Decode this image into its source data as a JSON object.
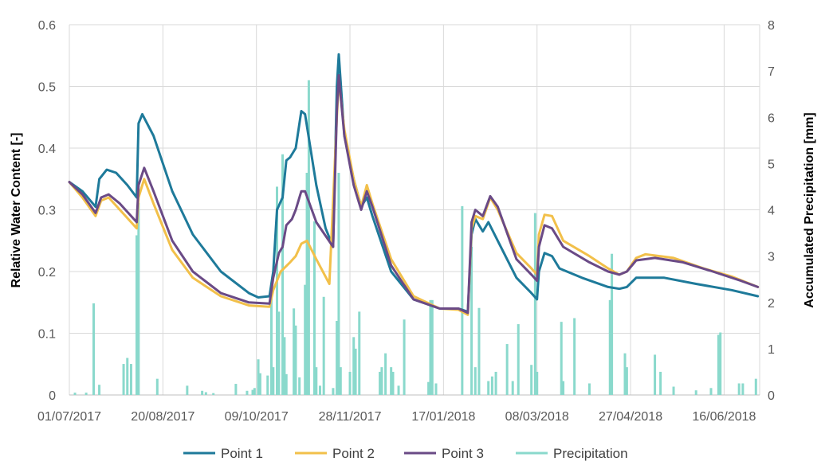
{
  "chart_data": {
    "type": "line",
    "xlabel": "",
    "ylabel": "Relative Water Content [-]",
    "y2label": "Accumulated Precipitation [mm]",
    "x_range": [
      "2017-07-01",
      "2018-07-05"
    ],
    "x_ticks": [
      "01/07/2017",
      "20/08/2017",
      "09/10/2017",
      "28/11/2017",
      "17/01/2018",
      "08/03/2018",
      "27/04/2018",
      "16/06/2018"
    ],
    "ylim": [
      0,
      0.6
    ],
    "y_ticks": [
      "0",
      "0.1",
      "0.2",
      "0.3",
      "0.4",
      "0.5",
      "0.6"
    ],
    "y2lim": [
      0,
      8
    ],
    "y2_ticks": [
      "0",
      "1",
      "2",
      "3",
      "4",
      "5",
      "6",
      "7",
      "8"
    ],
    "grid": "vertical and horizontal",
    "legend_position": "bottom",
    "series": [
      {
        "name": "Point 1",
        "color": "#1e7a9a",
        "axis": "left",
        "points": [
          [
            "2017-07-01",
            0.345
          ],
          [
            "2017-07-08",
            0.33
          ],
          [
            "2017-07-15",
            0.305
          ],
          [
            "2017-07-17",
            0.35
          ],
          [
            "2017-07-21",
            0.365
          ],
          [
            "2017-07-26",
            0.36
          ],
          [
            "2017-08-01",
            0.34
          ],
          [
            "2017-08-06",
            0.32
          ],
          [
            "2017-08-07",
            0.44
          ],
          [
            "2017-08-09",
            0.455
          ],
          [
            "2017-08-15",
            0.42
          ],
          [
            "2017-08-25",
            0.33
          ],
          [
            "2017-09-05",
            0.26
          ],
          [
            "2017-09-20",
            0.2
          ],
          [
            "2017-10-05",
            0.165
          ],
          [
            "2017-10-10",
            0.158
          ],
          [
            "2017-10-16",
            0.16
          ],
          [
            "2017-10-18",
            0.2
          ],
          [
            "2017-10-20",
            0.3
          ],
          [
            "2017-10-23",
            0.32
          ],
          [
            "2017-10-25",
            0.38
          ],
          [
            "2017-10-27",
            0.385
          ],
          [
            "2017-10-30",
            0.4
          ],
          [
            "2017-11-02",
            0.46
          ],
          [
            "2017-11-04",
            0.455
          ],
          [
            "2017-11-10",
            0.34
          ],
          [
            "2017-11-15",
            0.27
          ],
          [
            "2017-11-19",
            0.24
          ],
          [
            "2017-11-21",
            0.5
          ],
          [
            "2017-11-22",
            0.552
          ],
          [
            "2017-11-25",
            0.42
          ],
          [
            "2017-11-30",
            0.35
          ],
          [
            "2017-12-04",
            0.305
          ],
          [
            "2017-12-07",
            0.32
          ],
          [
            "2017-12-10",
            0.29
          ],
          [
            "2017-12-20",
            0.2
          ],
          [
            "2018-01-01",
            0.155
          ],
          [
            "2018-01-15",
            0.14
          ],
          [
            "2018-01-25",
            0.14
          ],
          [
            "2018-01-30",
            0.135
          ],
          [
            "2018-02-01",
            0.26
          ],
          [
            "2018-02-03",
            0.285
          ],
          [
            "2018-02-07",
            0.265
          ],
          [
            "2018-02-10",
            0.28
          ],
          [
            "2018-02-15",
            0.25
          ],
          [
            "2018-02-25",
            0.19
          ],
          [
            "2018-03-05",
            0.165
          ],
          [
            "2018-03-08",
            0.155
          ],
          [
            "2018-03-09",
            0.2
          ],
          [
            "2018-03-12",
            0.23
          ],
          [
            "2018-03-16",
            0.225
          ],
          [
            "2018-03-20",
            0.205
          ],
          [
            "2018-04-01",
            0.19
          ],
          [
            "2018-04-15",
            0.175
          ],
          [
            "2018-04-21",
            0.172
          ],
          [
            "2018-04-25",
            0.175
          ],
          [
            "2018-04-30",
            0.19
          ],
          [
            "2018-05-15",
            0.19
          ],
          [
            "2018-06-01",
            0.18
          ],
          [
            "2018-06-20",
            0.17
          ],
          [
            "2018-07-04",
            0.16
          ]
        ]
      },
      {
        "name": "Point 2",
        "color": "#f2c04a",
        "axis": "left",
        "points": [
          [
            "2017-07-01",
            0.345
          ],
          [
            "2017-07-08",
            0.32
          ],
          [
            "2017-07-15",
            0.29
          ],
          [
            "2017-07-18",
            0.315
          ],
          [
            "2017-07-22",
            0.32
          ],
          [
            "2017-07-28",
            0.3
          ],
          [
            "2017-08-06",
            0.27
          ],
          [
            "2017-08-07",
            0.32
          ],
          [
            "2017-08-10",
            0.35
          ],
          [
            "2017-08-15",
            0.31
          ],
          [
            "2017-08-25",
            0.235
          ],
          [
            "2017-09-05",
            0.19
          ],
          [
            "2017-09-20",
            0.16
          ],
          [
            "2017-10-05",
            0.145
          ],
          [
            "2017-10-16",
            0.143
          ],
          [
            "2017-10-18",
            0.17
          ],
          [
            "2017-10-22",
            0.2
          ],
          [
            "2017-10-27",
            0.215
          ],
          [
            "2017-10-30",
            0.225
          ],
          [
            "2017-11-02",
            0.245
          ],
          [
            "2017-11-05",
            0.25
          ],
          [
            "2017-11-10",
            0.22
          ],
          [
            "2017-11-17",
            0.18
          ],
          [
            "2017-11-21",
            0.45
          ],
          [
            "2017-11-22",
            0.51
          ],
          [
            "2017-11-25",
            0.43
          ],
          [
            "2017-11-30",
            0.35
          ],
          [
            "2017-12-04",
            0.305
          ],
          [
            "2017-12-07",
            0.34
          ],
          [
            "2017-12-10",
            0.31
          ],
          [
            "2017-12-20",
            0.22
          ],
          [
            "2018-01-01",
            0.16
          ],
          [
            "2018-01-15",
            0.14
          ],
          [
            "2018-01-25",
            0.138
          ],
          [
            "2018-01-30",
            0.13
          ],
          [
            "2018-02-01",
            0.27
          ],
          [
            "2018-02-03",
            0.29
          ],
          [
            "2018-02-07",
            0.285
          ],
          [
            "2018-02-11",
            0.32
          ],
          [
            "2018-02-15",
            0.3
          ],
          [
            "2018-02-25",
            0.23
          ],
          [
            "2018-03-05",
            0.205
          ],
          [
            "2018-03-08",
            0.195
          ],
          [
            "2018-03-09",
            0.26
          ],
          [
            "2018-03-12",
            0.292
          ],
          [
            "2018-03-16",
            0.29
          ],
          [
            "2018-03-22",
            0.25
          ],
          [
            "2018-04-05",
            0.225
          ],
          [
            "2018-04-15",
            0.205
          ],
          [
            "2018-04-21",
            0.195
          ],
          [
            "2018-04-25",
            0.2
          ],
          [
            "2018-04-30",
            0.222
          ],
          [
            "2018-05-05",
            0.228
          ],
          [
            "2018-05-20",
            0.222
          ],
          [
            "2018-06-05",
            0.205
          ],
          [
            "2018-06-20",
            0.192
          ],
          [
            "2018-07-04",
            0.175
          ]
        ]
      },
      {
        "name": "Point 3",
        "color": "#6a4a86",
        "axis": "left",
        "points": [
          [
            "2017-07-01",
            0.345
          ],
          [
            "2017-07-08",
            0.325
          ],
          [
            "2017-07-15",
            0.295
          ],
          [
            "2017-07-18",
            0.32
          ],
          [
            "2017-07-22",
            0.325
          ],
          [
            "2017-07-28",
            0.31
          ],
          [
            "2017-08-06",
            0.28
          ],
          [
            "2017-08-07",
            0.34
          ],
          [
            "2017-08-10",
            0.368
          ],
          [
            "2017-08-15",
            0.33
          ],
          [
            "2017-08-25",
            0.25
          ],
          [
            "2017-09-05",
            0.2
          ],
          [
            "2017-09-20",
            0.165
          ],
          [
            "2017-10-05",
            0.15
          ],
          [
            "2017-10-16",
            0.148
          ],
          [
            "2017-10-18",
            0.19
          ],
          [
            "2017-10-21",
            0.23
          ],
          [
            "2017-10-23",
            0.24
          ],
          [
            "2017-10-25",
            0.275
          ],
          [
            "2017-10-28",
            0.285
          ],
          [
            "2017-10-30",
            0.3
          ],
          [
            "2017-11-02",
            0.33
          ],
          [
            "2017-11-04",
            0.33
          ],
          [
            "2017-11-10",
            0.28
          ],
          [
            "2017-11-19",
            0.24
          ],
          [
            "2017-11-21",
            0.46
          ],
          [
            "2017-11-22",
            0.518
          ],
          [
            "2017-11-25",
            0.42
          ],
          [
            "2017-11-30",
            0.34
          ],
          [
            "2017-12-04",
            0.3
          ],
          [
            "2017-12-07",
            0.33
          ],
          [
            "2017-12-10",
            0.305
          ],
          [
            "2017-12-20",
            0.21
          ],
          [
            "2018-01-01",
            0.155
          ],
          [
            "2018-01-15",
            0.14
          ],
          [
            "2018-01-25",
            0.14
          ],
          [
            "2018-01-30",
            0.133
          ],
          [
            "2018-02-01",
            0.28
          ],
          [
            "2018-02-03",
            0.3
          ],
          [
            "2018-02-07",
            0.29
          ],
          [
            "2018-02-11",
            0.322
          ],
          [
            "2018-02-15",
            0.305
          ],
          [
            "2018-02-25",
            0.22
          ],
          [
            "2018-03-05",
            0.195
          ],
          [
            "2018-03-08",
            0.185
          ],
          [
            "2018-03-09",
            0.24
          ],
          [
            "2018-03-12",
            0.275
          ],
          [
            "2018-03-16",
            0.27
          ],
          [
            "2018-03-22",
            0.24
          ],
          [
            "2018-04-05",
            0.215
          ],
          [
            "2018-04-15",
            0.2
          ],
          [
            "2018-04-21",
            0.195
          ],
          [
            "2018-04-25",
            0.2
          ],
          [
            "2018-04-30",
            0.218
          ],
          [
            "2018-05-10",
            0.222
          ],
          [
            "2018-05-25",
            0.215
          ],
          [
            "2018-06-10",
            0.2
          ],
          [
            "2018-06-25",
            0.185
          ],
          [
            "2018-07-04",
            0.175
          ]
        ]
      }
    ],
    "precipitation": {
      "name": "Precipitation",
      "color": "#8ad9cc",
      "axis": "right",
      "bars": [
        [
          "2017-07-04",
          0.05
        ],
        [
          "2017-07-10",
          0.05
        ],
        [
          "2017-07-14",
          1.98
        ],
        [
          "2017-07-17",
          0.22
        ],
        [
          "2017-07-30",
          0.67
        ],
        [
          "2017-08-01",
          0.8
        ],
        [
          "2017-08-03",
          0.67
        ],
        [
          "2017-08-06",
          3.45
        ],
        [
          "2017-08-07",
          4.15
        ],
        [
          "2017-08-17",
          0.35
        ],
        [
          "2017-09-02",
          0.2
        ],
        [
          "2017-09-10",
          0.09
        ],
        [
          "2017-09-12",
          0.06
        ],
        [
          "2017-09-16",
          0.04
        ],
        [
          "2017-09-28",
          0.24
        ],
        [
          "2017-10-04",
          0.09
        ],
        [
          "2017-10-07",
          0.11
        ],
        [
          "2017-10-08",
          0.15
        ],
        [
          "2017-10-10",
          0.77
        ],
        [
          "2017-10-11",
          0.47
        ],
        [
          "2017-10-15",
          0.42
        ],
        [
          "2017-10-17",
          2.2
        ],
        [
          "2017-10-18",
          0.6
        ],
        [
          "2017-10-20",
          4.5
        ],
        [
          "2017-10-21",
          1.8
        ],
        [
          "2017-10-23",
          5.2
        ],
        [
          "2017-10-24",
          1.25
        ],
        [
          "2017-10-25",
          0.45
        ],
        [
          "2017-10-29",
          1.87
        ],
        [
          "2017-10-30",
          1.5
        ],
        [
          "2017-11-01",
          0.38
        ],
        [
          "2017-11-04",
          2.38
        ],
        [
          "2017-11-05",
          4.8
        ],
        [
          "2017-11-06",
          6.8
        ],
        [
          "2017-11-09",
          3.75
        ],
        [
          "2017-11-10",
          0.6
        ],
        [
          "2017-11-12",
          0.2
        ],
        [
          "2017-11-14",
          2.12
        ],
        [
          "2017-11-19",
          0.15
        ],
        [
          "2017-11-21",
          1.6
        ],
        [
          "2017-11-22",
          4.8
        ],
        [
          "2017-11-23",
          0.6
        ],
        [
          "2017-11-28",
          0.5
        ],
        [
          "2017-11-30",
          1.25
        ],
        [
          "2017-12-01",
          1.0
        ],
        [
          "2017-12-03",
          1.8
        ],
        [
          "2017-12-14",
          0.5
        ],
        [
          "2017-12-15",
          0.6
        ],
        [
          "2017-12-17",
          0.9
        ],
        [
          "2017-12-20",
          0.6
        ],
        [
          "2017-12-21",
          0.5
        ],
        [
          "2017-12-24",
          0.2
        ],
        [
          "2017-12-27",
          1.63
        ],
        [
          "2018-01-09",
          0.28
        ],
        [
          "2018-01-10",
          2.05
        ],
        [
          "2018-01-11",
          2.05
        ],
        [
          "2018-01-13",
          0.25
        ],
        [
          "2018-01-27",
          4.08
        ],
        [
          "2018-02-01",
          3.2
        ],
        [
          "2018-02-03",
          0.6
        ],
        [
          "2018-02-05",
          1.88
        ],
        [
          "2018-02-10",
          0.3
        ],
        [
          "2018-02-12",
          0.4
        ],
        [
          "2018-02-14",
          0.5
        ],
        [
          "2018-02-20",
          1.1
        ],
        [
          "2018-02-23",
          0.3
        ],
        [
          "2018-02-26",
          1.53
        ],
        [
          "2018-03-05",
          0.65
        ],
        [
          "2018-03-07",
          3.93
        ],
        [
          "2018-03-08",
          0.5
        ],
        [
          "2018-03-21",
          1.58
        ],
        [
          "2018-03-22",
          0.3
        ],
        [
          "2018-03-28",
          1.66
        ],
        [
          "2018-04-05",
          0.25
        ],
        [
          "2018-04-16",
          2.05
        ],
        [
          "2018-04-17",
          3.05
        ],
        [
          "2018-04-24",
          0.9
        ],
        [
          "2018-04-25",
          0.6
        ],
        [
          "2018-05-10",
          0.87
        ],
        [
          "2018-05-13",
          0.5
        ],
        [
          "2018-05-20",
          0.18
        ],
        [
          "2018-06-01",
          0.1
        ],
        [
          "2018-06-09",
          0.15
        ],
        [
          "2018-06-13",
          1.3
        ],
        [
          "2018-06-14",
          1.35
        ],
        [
          "2018-06-24",
          0.25
        ],
        [
          "2018-06-26",
          0.25
        ],
        [
          "2018-07-03",
          0.35
        ]
      ]
    }
  }
}
